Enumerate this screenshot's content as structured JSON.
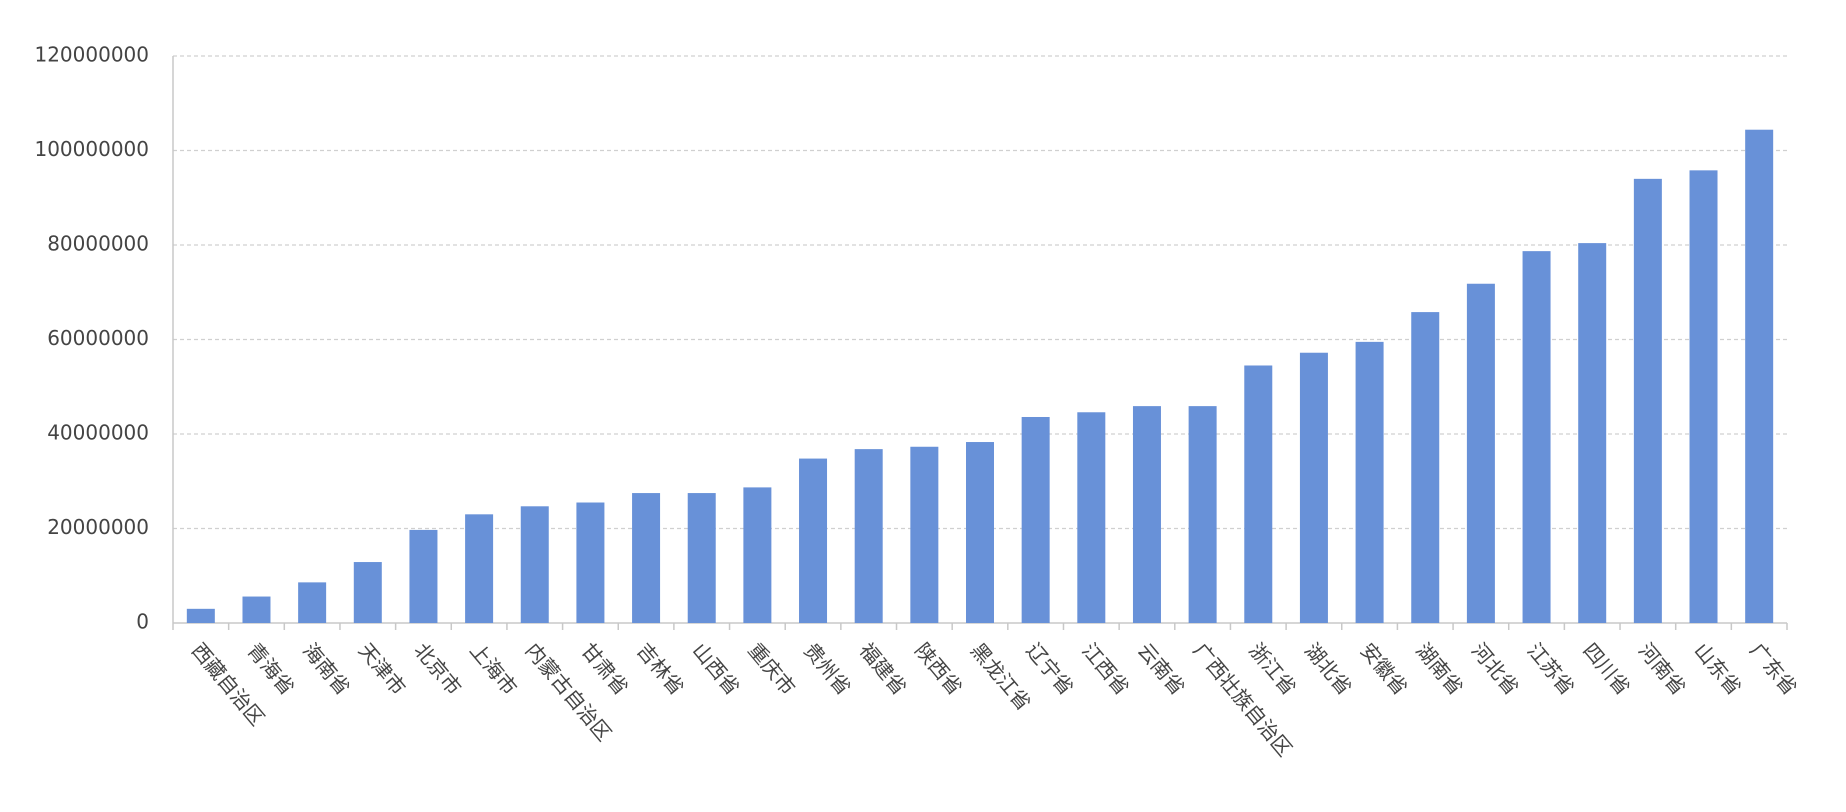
{
  "chart_data": {
    "type": "bar",
    "categories": [
      "西藏自治区",
      "青海省",
      "海南省",
      "天津市",
      "北京市",
      "上海市",
      "内蒙古自治区",
      "甘肃省",
      "吉林省",
      "山西省",
      "重庆市",
      "贵州省",
      "福建省",
      "陕西省",
      "黑龙江省",
      "辽宁省",
      "江西省",
      "云南省",
      "广西壮族自治区",
      "浙江省",
      "湖北省",
      "安徽省",
      "湖南省",
      "河北省",
      "江苏省",
      "四川省",
      "河南省",
      "山东省",
      "广东省"
    ],
    "values": [
      3000000,
      5600000,
      8600000,
      12900000,
      19700000,
      23000000,
      24700000,
      25500000,
      27500000,
      27500000,
      28700000,
      34800000,
      36800000,
      37300000,
      38300000,
      43600000,
      44600000,
      45900000,
      45900000,
      54500000,
      57200000,
      59500000,
      65800000,
      71800000,
      78700000,
      80400000,
      94000000,
      95800000,
      104400000
    ],
    "color": "#6891d8",
    "ylim": [
      0,
      120000000
    ],
    "yticks": [
      0,
      20000000,
      40000000,
      60000000,
      80000000,
      100000000,
      120000000
    ],
    "grid": true
  }
}
